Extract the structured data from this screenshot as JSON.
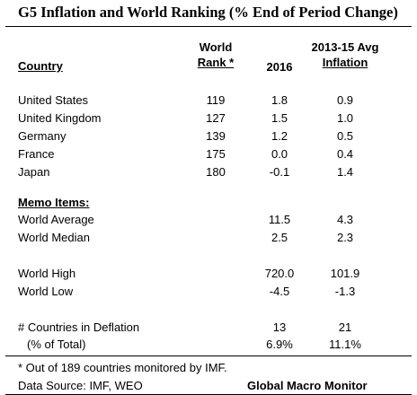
{
  "title": "G5 Inflation and World Ranking (% End of Period Change)",
  "headers": {
    "country": "Country",
    "rank_line1": "World",
    "rank_line2": "Rank *",
    "year": "2016",
    "avg_line1": "2013-15 Avg",
    "avg_line2": "Inflation"
  },
  "rows": [
    {
      "country": "United States",
      "rank": "119",
      "y2016": "1.8",
      "avg": "0.9"
    },
    {
      "country": "United Kingdom",
      "rank": "127",
      "y2016": "1.5",
      "avg": "1.0"
    },
    {
      "country": "Germany",
      "rank": "139",
      "y2016": "1.2",
      "avg": "0.5"
    },
    {
      "country": "France",
      "rank": "175",
      "y2016": "0.0",
      "avg": "0.4"
    },
    {
      "country": "Japan",
      "rank": "180",
      "y2016": "-0.1",
      "avg": "1.4"
    }
  ],
  "memo": {
    "heading": "Memo Items:",
    "average": {
      "label": "World Average",
      "y2016": "11.5",
      "avg": "4.3"
    },
    "median": {
      "label": "World Median",
      "y2016": "2.5",
      "avg": "2.3"
    },
    "high": {
      "label": "World High",
      "y2016": "720.0",
      "avg": "101.9"
    },
    "low": {
      "label": "World Low",
      "y2016": "-4.5",
      "avg": "-1.3"
    },
    "deflation": {
      "label": "# Countries in Deflation",
      "y2016": "13",
      "avg": "21"
    },
    "pct": {
      "label": "(% of Total)",
      "y2016": "6.9%",
      "avg": "11.1%"
    }
  },
  "footer": {
    "note": "* Out of 189 countries monitored by IMF.",
    "source": "Data Source:  IMF, WEO",
    "brand": "Global Macro Monitor"
  }
}
